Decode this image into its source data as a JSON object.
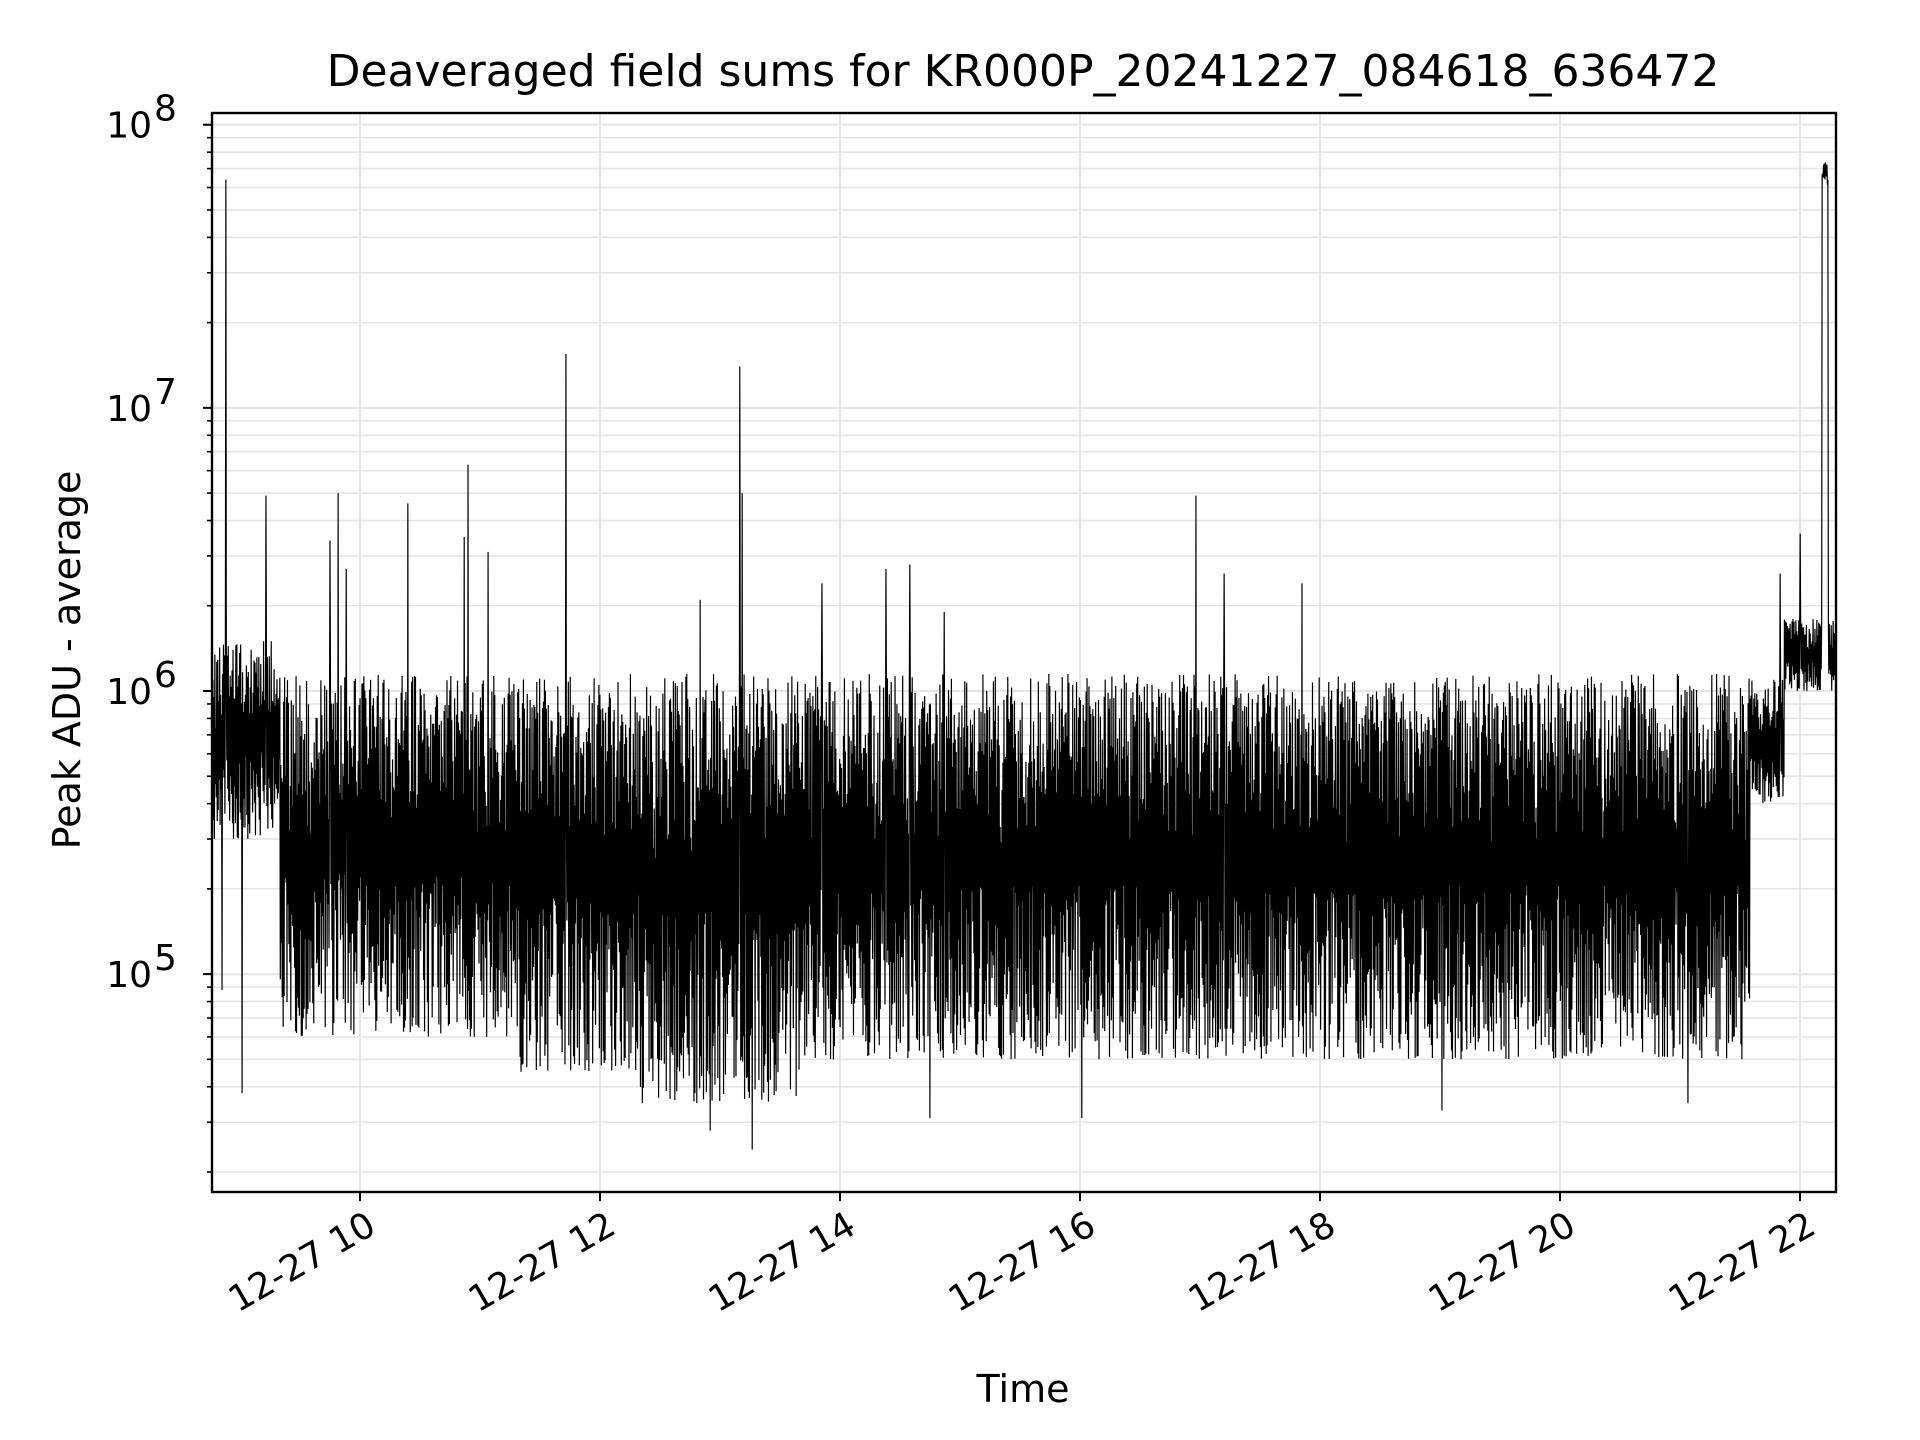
{
  "chart_data": {
    "type": "line",
    "title": "Deaveraged field sums for KR000P_20241227_084618_636472",
    "xlabel": "Time",
    "ylabel": "Peak ADU - average",
    "y_scale": "log",
    "ylim": [
      17000,
      110000000
    ],
    "xlim": [
      "12-27 08:46",
      "12-27 22:18"
    ],
    "grid": true,
    "line_color": "#000000",
    "grid_color": "#e5e5e5",
    "x_ticks": [
      {
        "t": "12-27 10:00",
        "label": "12-27 10"
      },
      {
        "t": "12-27 12:00",
        "label": "12-27 12"
      },
      {
        "t": "12-27 14:00",
        "label": "12-27 14"
      },
      {
        "t": "12-27 16:00",
        "label": "12-27 16"
      },
      {
        "t": "12-27 18:00",
        "label": "12-27 18"
      },
      {
        "t": "12-27 20:00",
        "label": "12-27 20"
      },
      {
        "t": "12-27 22:00",
        "label": "12-27 22"
      }
    ],
    "y_ticks": [
      {
        "value": 100000,
        "base": "10",
        "exp": "5"
      },
      {
        "value": 1000000,
        "base": "10",
        "exp": "6"
      },
      {
        "value": 10000000,
        "base": "10",
        "exp": "7"
      },
      {
        "value": 100000000,
        "base": "10",
        "exp": "8"
      }
    ],
    "series": [
      {
        "description": "Dense oscillating signal between roughly 4e4 and 1.2e6 ADU with spikes",
        "baseline_segments": [
          {
            "t_start": "12-27 08:46",
            "t_end": "12-27 09:20",
            "low": 300000,
            "high": 1500000
          },
          {
            "t_start": "12-27 09:20",
            "t_end": "12-27 11:20",
            "low": 60000,
            "high": 1150000
          },
          {
            "t_start": "12-27 11:20",
            "t_end": "12-27 12:20",
            "low": 45000,
            "high": 1150000
          },
          {
            "t_start": "12-27 12:20",
            "t_end": "12-27 13:40",
            "low": 35000,
            "high": 1150000
          },
          {
            "t_start": "12-27 13:40",
            "t_end": "12-27 16:00",
            "low": 50000,
            "high": 1150000
          },
          {
            "t_start": "12-27 16:00",
            "t_end": "12-27 21:35",
            "low": 50000,
            "high": 1150000
          },
          {
            "t_start": "12-27 21:35",
            "t_end": "12-27 21:52",
            "low": 400000,
            "high": 1100000
          },
          {
            "t_start": "12-27 21:52",
            "t_end": "12-27 22:18",
            "low": 1000000,
            "high": 1800000
          }
        ],
        "spikes": [
          {
            "t": "12-27 08:53",
            "value": 64000000
          },
          {
            "t": "12-27 09:13",
            "value": 4900000
          },
          {
            "t": "12-27 09:45",
            "value": 3400000
          },
          {
            "t": "12-27 09:49",
            "value": 5000000
          },
          {
            "t": "12-27 09:53",
            "value": 2700000
          },
          {
            "t": "12-27 10:24",
            "value": 4600000
          },
          {
            "t": "12-27 10:52",
            "value": 3500000
          },
          {
            "t": "12-27 10:54",
            "value": 6300000
          },
          {
            "t": "12-27 11:04",
            "value": 3100000
          },
          {
            "t": "12-27 11:43",
            "value": 15500000
          },
          {
            "t": "12-27 12:50",
            "value": 2100000
          },
          {
            "t": "12-27 13:10",
            "value": 14000000
          },
          {
            "t": "12-27 13:11",
            "value": 5000000
          },
          {
            "t": "12-27 13:51",
            "value": 2400000
          },
          {
            "t": "12-27 14:23",
            "value": 2700000
          },
          {
            "t": "12-27 14:35",
            "value": 2800000
          },
          {
            "t": "12-27 14:52",
            "value": 1900000
          },
          {
            "t": "12-27 16:58",
            "value": 4900000
          },
          {
            "t": "12-27 17:12",
            "value": 2600000
          },
          {
            "t": "12-27 17:51",
            "value": 2400000
          },
          {
            "t": "12-27 21:50",
            "value": 2600000
          },
          {
            "t": "12-27 22:00",
            "value": 3600000
          },
          {
            "t": "12-27 22:12",
            "value": 75000000
          }
        ],
        "dips": [
          {
            "t": "12-27 08:51",
            "value": 88000
          },
          {
            "t": "12-27 09:01",
            "value": 38000
          },
          {
            "t": "12-27 12:55",
            "value": 28000
          },
          {
            "t": "12-27 13:16",
            "value": 24000
          },
          {
            "t": "12-27 14:45",
            "value": 31000
          },
          {
            "t": "12-27 16:01",
            "value": 31000
          },
          {
            "t": "12-27 19:01",
            "value": 33000
          },
          {
            "t": "12-27 21:04",
            "value": 35000
          }
        ]
      }
    ]
  }
}
